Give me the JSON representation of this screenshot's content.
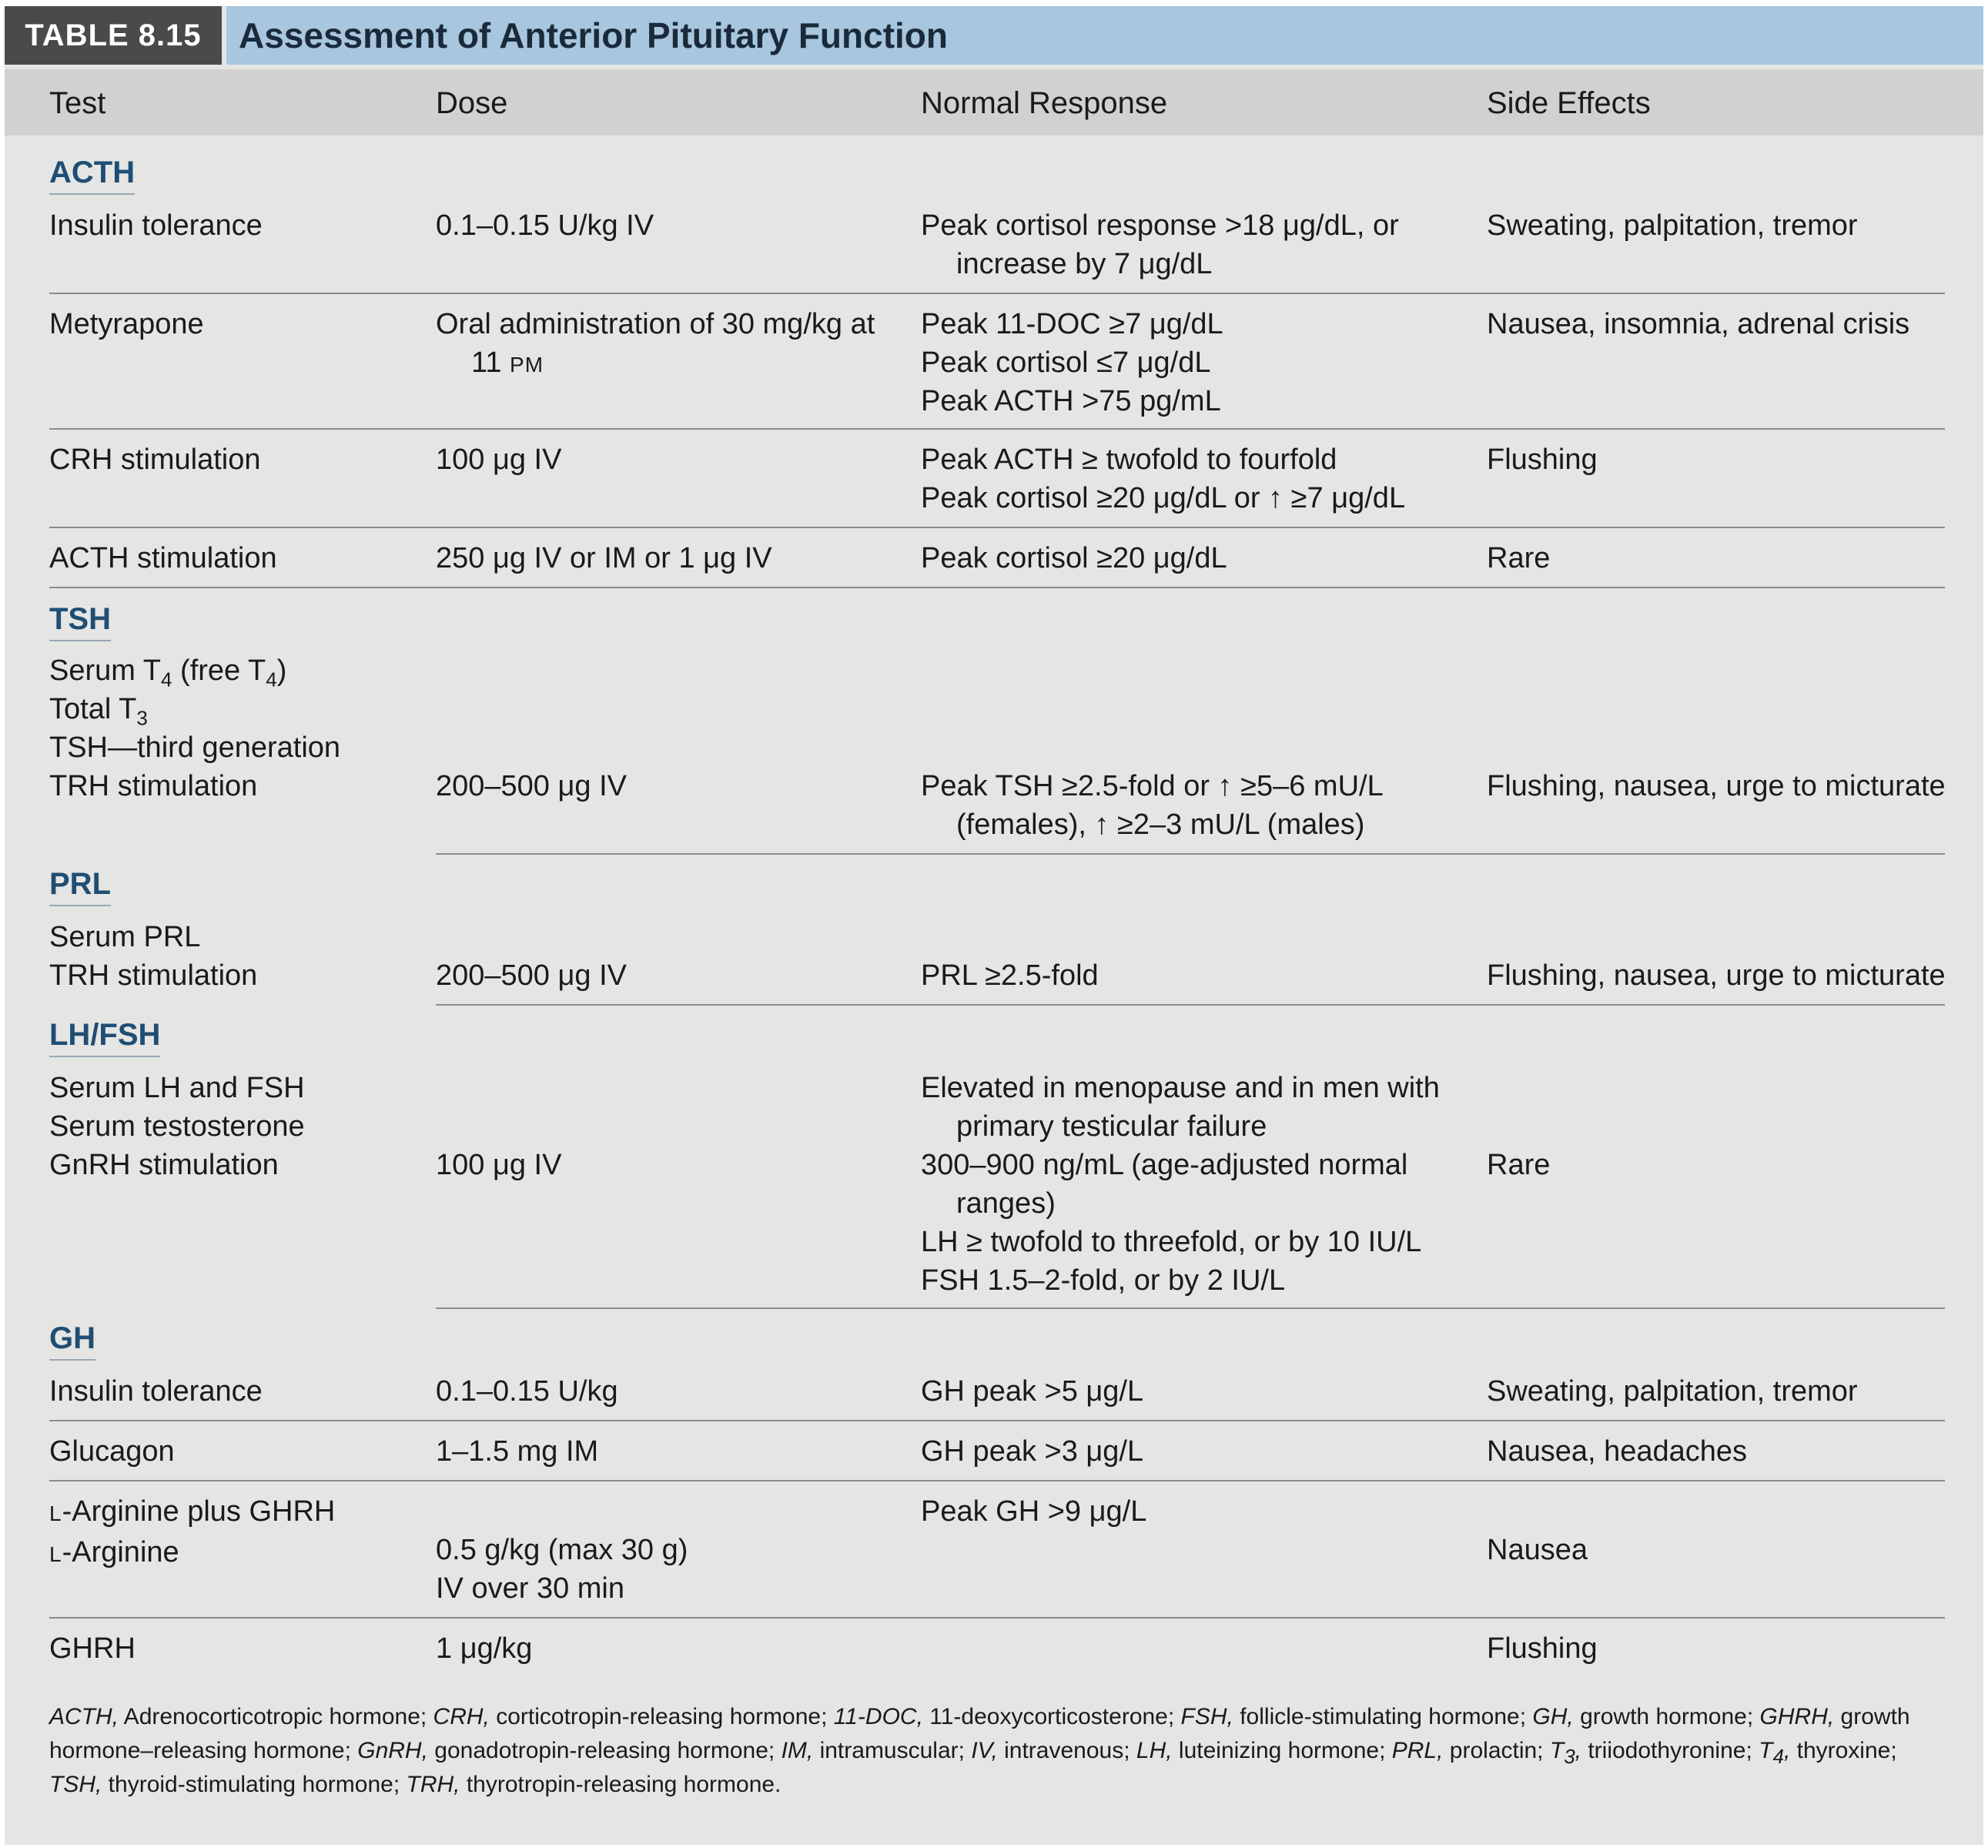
{
  "table": {
    "label": "TABLE 8.15",
    "title": "Assessment of Anterior Pituitary Function",
    "columns": [
      "Test",
      "Dose",
      "Normal Response",
      "Side Effects"
    ]
  },
  "acth": {
    "title": "ACTH",
    "r1": {
      "test": "Insulin tolerance",
      "dose": "0.1–0.15 U/kg IV",
      "resp1": "Peak cortisol response >18 μg/dL, or",
      "resp2": "increase by 7 μg/dL",
      "side": "Sweating, palpitation, tremor"
    },
    "r2": {
      "test": "Metyrapone",
      "dose1": "Oral administration of 30 mg/kg at",
      "dose2a": "11 ",
      "dose2b": "PM",
      "resp1": "Peak 11-DOC ≥7 μg/dL",
      "resp2": "Peak cortisol ≤7 μg/dL",
      "resp3": "Peak ACTH >75 pg/mL",
      "side": "Nausea, insomnia, adrenal crisis"
    },
    "r3": {
      "test": "CRH stimulation",
      "dose": "100 μg IV",
      "resp1": "Peak ACTH ≥ twofold to fourfold",
      "resp2": "Peak cortisol ≥20 μg/dL or ↑ ≥7 μg/dL",
      "side": "Flushing"
    },
    "r4": {
      "test": "ACTH stimulation",
      "dose": "250 μg IV or IM or 1 μg IV",
      "resp": "Peak cortisol ≥20 μg/dL",
      "side": "Rare"
    }
  },
  "tsh": {
    "title": "TSH",
    "t1a": "Serum T",
    "t1b": "4",
    "t1c": " (free T",
    "t1d": "4",
    "t1e": ")",
    "t2a": "Total T",
    "t2b": "3",
    "t3": "TSH—third generation",
    "t4": "TRH stimulation",
    "dose": "200–500 μg IV",
    "resp1": "Peak TSH ≥2.5-fold or ↑ ≥5–6 mU/L",
    "resp2": "(females), ↑ ≥2–3 mU/L (males)",
    "side": "Flushing, nausea, urge to micturate"
  },
  "prl": {
    "title": "PRL",
    "t1": "Serum PRL",
    "t2": "TRH stimulation",
    "dose": "200–500 μg IV",
    "resp": "PRL ≥2.5-fold",
    "side": "Flushing, nausea, urge to micturate"
  },
  "lhfsh": {
    "title": "LH/FSH",
    "t1": "Serum LH and FSH",
    "t2": "Serum testosterone",
    "t3": "GnRH stimulation",
    "dose": "100 μg IV",
    "resp1": "Elevated in menopause and in men with",
    "resp2": "primary testicular failure",
    "resp3": "300–900 ng/mL (age-adjusted normal",
    "resp4": "ranges)",
    "resp5": "LH ≥ twofold to threefold, or by 10 IU/L",
    "resp6": "FSH 1.5–2-fold, or by 2 IU/L",
    "side": "Rare"
  },
  "gh": {
    "title": "GH",
    "r1": {
      "test": "Insulin tolerance",
      "dose": "0.1–0.15 U/kg",
      "resp": "GH peak >5 μg/L",
      "side": "Sweating, palpitation, tremor"
    },
    "r2": {
      "test": "Glucagon",
      "dose": "1–1.5 mg IM",
      "resp": "GH peak >3 μg/L",
      "side": "Nausea, headaches"
    },
    "r3": {
      "t1a": "L",
      "t1b": "-Arginine plus GHRH",
      "t2a": "L",
      "t2b": "-Arginine",
      "dose1": "0.5 g/kg (max 30 g)",
      "dose2": "IV over 30 min",
      "resp": "Peak GH >9 μg/L",
      "side": "Nausea"
    },
    "r4": {
      "test": "GHRH",
      "dose": "1 μg/kg",
      "side": "Flushing"
    }
  },
  "footnote": {
    "a1": "ACTH,",
    "a2": " Adrenocorticotropic hormone; ",
    "b1": "CRH,",
    "b2": " corticotropin-releasing hormone; ",
    "c1": "11-DOC,",
    "c2": " 11-deoxycorticosterone; ",
    "d1": "FSH,",
    "d2": " follicle-stimulating hormone; ",
    "e1": "GH,",
    "e2": " growth hormone; ",
    "f1": "GHRH,",
    "f2": " growth hormone–releasing hormone; ",
    "g1": "GnRH,",
    "g2": " gonadotropin-releasing hormone; ",
    "h1": "IM,",
    "h2": " intramuscular; ",
    "i1": "IV,",
    "i2": " intravenous; ",
    "j1": "LH,",
    "j2": " luteinizing hormone; ",
    "k1": "PRL,",
    "k2": " prolactin; ",
    "l1": "T",
    "l1s": "3",
    "l1e": ",",
    "l2": " triiodothyronine; ",
    "m1": "T",
    "m1s": "4",
    "m1e": ",",
    "m2": " thyroxine; ",
    "n1": "TSH,",
    "n2": " thyroid-stimulating hormone; ",
    "o1": "TRH,",
    "o2": " thyrotropin-releasing hormone."
  }
}
